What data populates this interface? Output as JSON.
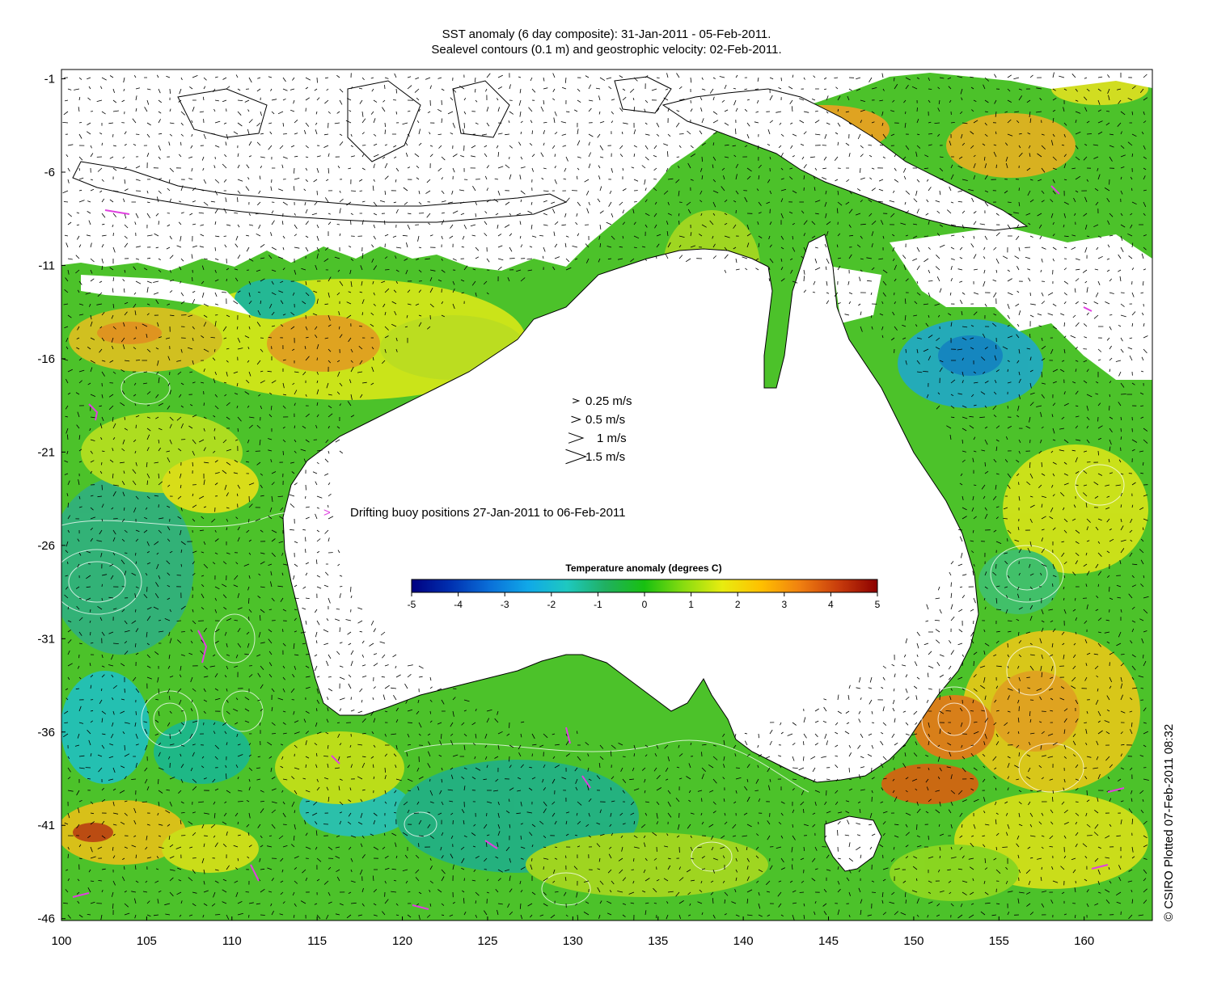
{
  "title_line1": "SST anomaly (6 day composite): 31-Jan-2011 - 05-Feb-2011.",
  "title_line2": "Sealevel contours (0.1 m) and geostrophic velocity: 02-Feb-2011.",
  "axes": {
    "x_ticks": [
      "100",
      "105",
      "110",
      "115",
      "120",
      "125",
      "130",
      "135",
      "140",
      "145",
      "150",
      "155",
      "160"
    ],
    "y_ticks": [
      "-1",
      "-6",
      "-11",
      "-16",
      "-21",
      "-26",
      "-31",
      "-36",
      "-41",
      "-46"
    ]
  },
  "velocity_key": {
    "items": [
      {
        "label": "0.25 m/s",
        "speed": 0.25
      },
      {
        "label": "0.5 m/s",
        "speed": 0.5
      },
      {
        "label": "1 m/s",
        "speed": 1
      },
      {
        "label": "1.5 m/s",
        "speed": 1.5
      }
    ]
  },
  "buoy_legend": {
    "symbol": ">",
    "label": "Drifting buoy positions 27-Jan-2011 to 06-Feb-2011",
    "color": "#e040e0"
  },
  "colorbar": {
    "title": "Temperature anomaly (degrees C)",
    "ticks": [
      "-5",
      "-4",
      "-3",
      "-2",
      "-1",
      "0",
      "1",
      "2",
      "3",
      "4",
      "5"
    ],
    "min": -5,
    "max": 5,
    "colors": [
      "#000080",
      "#0030b0",
      "#0a6fd8",
      "#10a8e8",
      "#1ec8c0",
      "#20b060",
      "#18c010",
      "#88dc10",
      "#e8ec10",
      "#ffc000",
      "#f08010",
      "#c83c0c",
      "#8c0000"
    ]
  },
  "colors": {
    "ocean_base": "#4cc22a",
    "land": "#ffffff",
    "cloud_gap": "#ffffff",
    "coastline": "#000000",
    "contour": "#ffffff",
    "arrow": "#000000"
  },
  "copyright": "© CSIRO Plotted 07-Feb-2011 08:32"
}
